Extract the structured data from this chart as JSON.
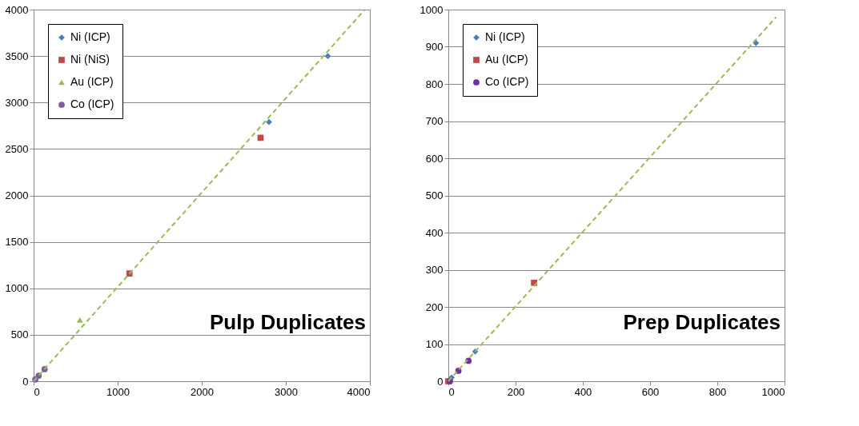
{
  "chart_data": [
    {
      "type": "scatter",
      "annotations": [
        "Pulp Duplicates"
      ],
      "xlim": [
        0,
        4000
      ],
      "xticks": [
        0,
        1000,
        2000,
        3000,
        4000
      ],
      "ylim": [
        0,
        4000
      ],
      "yticks": [
        0,
        500,
        1000,
        1500,
        2000,
        2500,
        3000,
        3500,
        4000
      ],
      "grid": "y",
      "legend": "top left",
      "series": [
        {
          "name": "Ni (ICP)",
          "color": "#4a7ebb",
          "marker": "diamond",
          "x": [
            3500,
            2800
          ],
          "values": [
            3500,
            2790
          ]
        },
        {
          "name": "Ni (NiS)",
          "color": "#be4b48",
          "marker": "square",
          "x": [
            2700,
            1140
          ],
          "values": [
            2620,
            1160
          ]
        },
        {
          "name": "Au (ICP)",
          "color": "#98b954",
          "marker": "triangle",
          "x": [
            550
          ],
          "values": [
            660
          ]
        },
        {
          "name": "Co (ICP)",
          "color": "#7d5fa0",
          "marker": "circle",
          "x": [
            20,
            60,
            130
          ],
          "values": [
            20,
            60,
            130
          ]
        },
        {
          "type": "line",
          "color": "#9bbb59",
          "line_style": "dashed",
          "x": [
            0,
            3940
          ],
          "values": [
            0,
            4000
          ]
        }
      ]
    },
    {
      "type": "scatter",
      "annotations": [
        "Prep Duplicates"
      ],
      "xlim": [
        0,
        1000
      ],
      "xticks": [
        0,
        200,
        400,
        600,
        800,
        1000
      ],
      "ylim": [
        0,
        1000
      ],
      "yticks": [
        0,
        100,
        200,
        300,
        400,
        500,
        600,
        700,
        800,
        900,
        1000
      ],
      "grid": "y",
      "legend": "top left",
      "series": [
        {
          "name": "Ni (ICP)",
          "color": "#4a7ebb",
          "marker": "diamond",
          "x": [
            915,
            80,
            10
          ],
          "values": [
            910,
            80,
            10
          ]
        },
        {
          "name": "Au (ICP)",
          "color": "#be4b48",
          "marker": "square",
          "x": [
            255,
            0
          ],
          "values": [
            265,
            0
          ]
        },
        {
          "name": "Co (ICP)",
          "color": "#7030a0",
          "marker": "circle",
          "x": [
            60,
            30,
            5
          ],
          "values": [
            55,
            28,
            0
          ]
        },
        {
          "type": "line",
          "color": "#9bbb59",
          "line_style": "dashed",
          "x": [
            0,
            975
          ],
          "values": [
            0,
            980
          ]
        }
      ]
    }
  ]
}
